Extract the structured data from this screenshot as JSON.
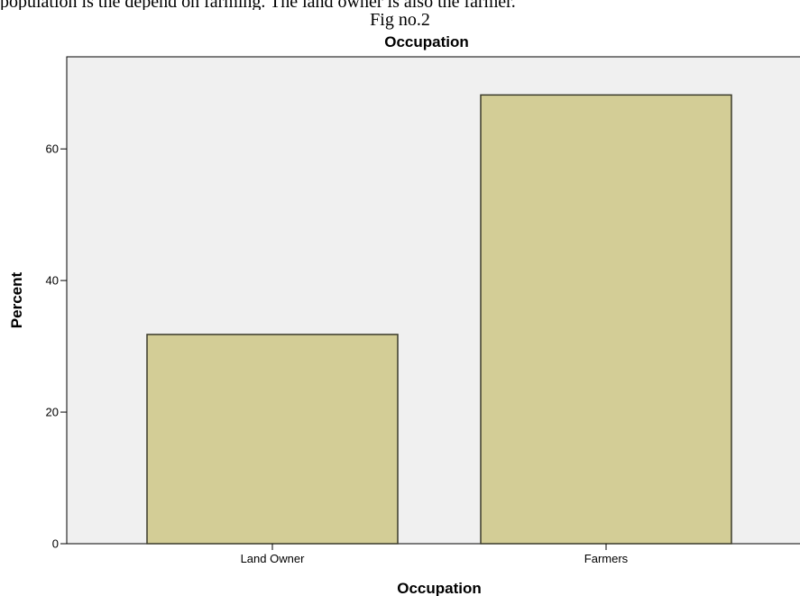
{
  "page": {
    "top_text": "population is the depend on farming. The land owner is also the farmer.",
    "figure_caption": "Fig no.2"
  },
  "chart_data": {
    "type": "bar",
    "title": "Occupation",
    "xlabel": "Occupation",
    "ylabel": "Percent",
    "categories": [
      "Land Owner",
      "Farmers"
    ],
    "values": [
      31.8,
      68.2
    ],
    "ylim": [
      0,
      74
    ],
    "yticks": [
      0,
      20,
      40,
      60
    ],
    "grid": false,
    "legend": "none",
    "colors": {
      "bar_fill": "#d3cd96",
      "bar_stroke": "#3a3a2a",
      "plot_background": "#f0f0f0",
      "axis": "#000000"
    }
  }
}
